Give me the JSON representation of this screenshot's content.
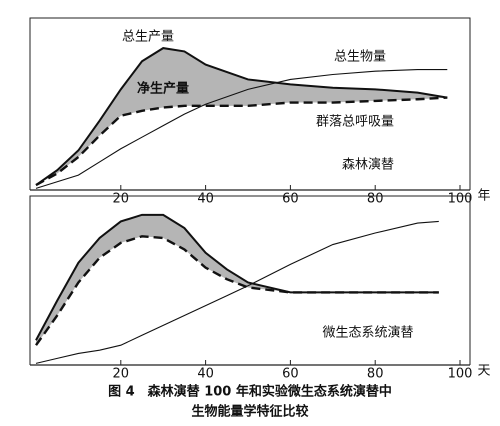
{
  "chart_data": [
    {
      "type": "line",
      "subtitle": "森林演替",
      "annotation": "净生产量",
      "xlabel": "年",
      "xlim": [
        0,
        100
      ],
      "ylim": [
        0,
        100
      ],
      "xticks": [
        20,
        40,
        60,
        80,
        100
      ],
      "color": "#111",
      "shade": "#b5b5b5",
      "x": [
        0,
        5,
        10,
        15,
        20,
        25,
        30,
        35,
        40,
        50,
        60,
        70,
        80,
        90,
        97
      ],
      "series": [
        {
          "name": "总生产量",
          "style": "solid",
          "values": [
            3,
            12,
            24,
            42,
            61,
            78,
            86,
            84,
            76,
            67,
            64,
            62,
            61,
            59,
            56
          ]
        },
        {
          "name": "群落总呼吸量",
          "style": "dashed",
          "values": [
            3,
            10,
            20,
            33,
            45,
            48,
            50,
            51,
            51,
            51,
            53,
            53,
            54,
            55,
            56
          ]
        },
        {
          "name": "总生物量",
          "style": "thin",
          "values": [
            1,
            5,
            9,
            17,
            25,
            32,
            39,
            46,
            52,
            61,
            67,
            70,
            72,
            73,
            73
          ]
        }
      ]
    },
    {
      "type": "line",
      "subtitle": "微生态系统演替",
      "xlabel": "天",
      "xlim": [
        0,
        100
      ],
      "ylim": [
        0,
        100
      ],
      "xticks": [
        20,
        40,
        60,
        80,
        100
      ],
      "color": "#111",
      "shade": "#b5b5b5",
      "x": [
        0,
        5,
        10,
        15,
        20,
        25,
        30,
        35,
        40,
        45,
        50,
        60,
        70,
        80,
        90,
        95
      ],
      "series": [
        {
          "style": "solid",
          "values": [
            15,
            39,
            62,
            77,
            87,
            91,
            91,
            83,
            68,
            58,
            50,
            44,
            44,
            44,
            44,
            44
          ]
        },
        {
          "style": "dashed",
          "values": [
            12,
            30,
            50,
            65,
            74,
            78,
            77,
            70,
            59,
            52,
            47,
            44,
            44,
            44,
            44,
            44
          ]
        },
        {
          "style": "thin",
          "values": [
            1,
            4,
            7,
            9,
            12,
            18,
            24,
            30,
            36,
            42,
            48,
            61,
            73,
            80,
            86,
            87
          ]
        }
      ]
    }
  ],
  "caption": [
    "图 4　森林演替 100 年和实验微生态系统演替中",
    "生物能量学特征比较"
  ]
}
